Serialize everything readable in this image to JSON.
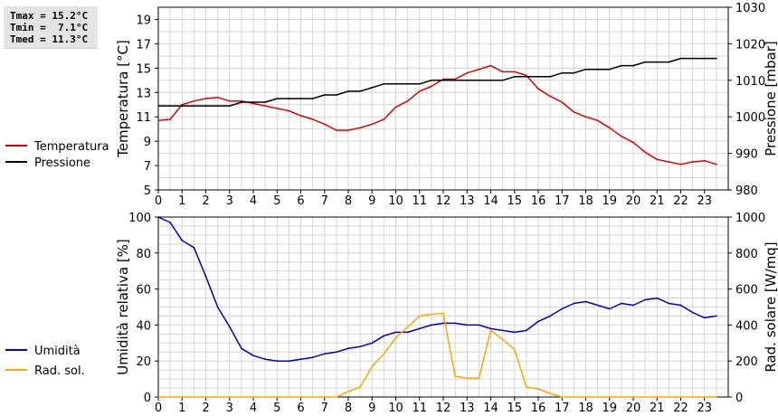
{
  "stats": {
    "tmax": "Tmax = 15.2°C",
    "tmin": "Tmin =  7.1°C",
    "tmed": "Tmed = 11.3°C"
  },
  "colors": {
    "temperature": "#e00000",
    "pressure": "#000000",
    "humidity": "#0000c8",
    "radiation": "#ffa500",
    "grid": "#d4d4d4"
  },
  "chart_data": [
    {
      "type": "line",
      "xlabel": "",
      "x_ticks": [
        "0",
        "1",
        "2",
        "3",
        "4",
        "5",
        "6",
        "7",
        "8",
        "9",
        "10",
        "11",
        "12",
        "13",
        "14",
        "15",
        "16",
        "17",
        "18",
        "19",
        "20",
        "21",
        "22",
        "23"
      ],
      "xlim": [
        0,
        24
      ],
      "grid": true,
      "legend_position": "left",
      "left_axis": {
        "label": "Temperatura [°C]",
        "ylim": [
          5,
          20
        ],
        "ticks": [
          "5",
          "7",
          "9",
          "11",
          "13",
          "15",
          "17",
          "19"
        ]
      },
      "right_axis": {
        "label": "Pressione [mbar]",
        "ylim": [
          980,
          1030
        ],
        "ticks": [
          "980",
          "990",
          "1000",
          "1010",
          "1020",
          "1030"
        ]
      },
      "series": [
        {
          "name": "Temperatura",
          "axis": "left",
          "x": [
            0,
            0.5,
            1,
            1.5,
            2,
            2.5,
            3,
            3.5,
            4,
            4.5,
            5,
            5.5,
            6,
            6.5,
            7,
            7.5,
            8,
            8.5,
            9,
            9.5,
            10,
            10.5,
            11,
            11.5,
            12,
            12.5,
            13,
            13.5,
            14,
            14.5,
            15,
            15.5,
            16,
            16.5,
            17,
            17.5,
            18,
            18.5,
            19,
            19.5,
            20,
            20.5,
            21,
            21.5,
            22,
            22.5,
            23,
            23.5
          ],
          "values": [
            10.7,
            10.8,
            12.0,
            12.3,
            12.5,
            12.6,
            12.3,
            12.3,
            12.1,
            11.9,
            11.7,
            11.5,
            11.1,
            10.8,
            10.4,
            9.9,
            9.9,
            10.1,
            10.4,
            10.8,
            11.8,
            12.3,
            13.1,
            13.5,
            14.1,
            14.1,
            14.6,
            14.9,
            15.2,
            14.7,
            14.7,
            14.4,
            13.3,
            12.7,
            12.2,
            11.4,
            11.0,
            10.7,
            10.1,
            9.4,
            8.9,
            8.1,
            7.5,
            7.3,
            7.1,
            7.3,
            7.4,
            7.1
          ]
        },
        {
          "name": "Pressione",
          "axis": "right",
          "x": [
            0,
            0.5,
            1,
            1.5,
            2,
            2.5,
            3,
            3.5,
            4,
            4.5,
            5,
            5.5,
            6,
            6.5,
            7,
            7.5,
            8,
            8.5,
            9,
            9.5,
            10,
            10.5,
            11,
            11.5,
            12,
            12.5,
            13,
            13.5,
            14,
            14.5,
            15,
            15.5,
            16,
            16.5,
            17,
            17.5,
            18,
            18.5,
            19,
            19.5,
            20,
            20.5,
            21,
            21.5,
            22,
            22.5,
            23,
            23.5
          ],
          "values": [
            1003,
            1003,
            1003,
            1003,
            1003,
            1003,
            1003,
            1004,
            1004,
            1004,
            1005,
            1005,
            1005,
            1005,
            1006,
            1006,
            1007,
            1007,
            1008,
            1009,
            1009,
            1009,
            1009,
            1010,
            1010,
            1010,
            1010,
            1010,
            1010,
            1010,
            1011,
            1011,
            1011,
            1011,
            1012,
            1012,
            1013,
            1013,
            1013,
            1014,
            1014,
            1015,
            1015,
            1015,
            1016,
            1016,
            1016,
            1016
          ]
        }
      ]
    },
    {
      "type": "line",
      "xlabel": "",
      "x_ticks": [
        "0",
        "1",
        "2",
        "3",
        "4",
        "5",
        "6",
        "7",
        "8",
        "9",
        "10",
        "11",
        "12",
        "13",
        "14",
        "15",
        "16",
        "17",
        "18",
        "19",
        "20",
        "21",
        "22",
        "23"
      ],
      "xlim": [
        0,
        24
      ],
      "grid": true,
      "legend_position": "left",
      "left_axis": {
        "label": "Umidità relativa [%]",
        "ylim": [
          0,
          100
        ],
        "ticks": [
          "0",
          "20",
          "40",
          "60",
          "80",
          "100"
        ]
      },
      "right_axis": {
        "label": "Rad. solare [W/mq]",
        "ylim": [
          0,
          1000
        ],
        "ticks": [
          "0",
          "200",
          "400",
          "600",
          "800",
          "1000"
        ]
      },
      "series": [
        {
          "name": "Umidità",
          "axis": "left",
          "x": [
            0,
            0.5,
            1,
            1.5,
            2,
            2.5,
            3,
            3.5,
            4,
            4.5,
            5,
            5.5,
            6,
            6.5,
            7,
            7.5,
            8,
            8.5,
            9,
            9.5,
            10,
            10.5,
            11,
            11.5,
            12,
            12.5,
            13,
            13.5,
            14,
            14.5,
            15,
            15.5,
            16,
            16.5,
            17,
            17.5,
            18,
            18.5,
            19,
            19.5,
            20,
            20.5,
            21,
            21.5,
            22,
            22.5,
            23,
            23.5
          ],
          "values": [
            100,
            97,
            87,
            83,
            67,
            50,
            39,
            27,
            23,
            21,
            20,
            20,
            21,
            22,
            24,
            25,
            27,
            28,
            30,
            34,
            36,
            36,
            38,
            40,
            41,
            41,
            40,
            40,
            38,
            37,
            36,
            37,
            42,
            45,
            49,
            52,
            53,
            51,
            49,
            52,
            51,
            54,
            55,
            52,
            51,
            47,
            44,
            45
          ]
        },
        {
          "name": "Rad. sol.",
          "axis": "right",
          "x": [
            0,
            1,
            2,
            3,
            4,
            5,
            6,
            7,
            7.5,
            8,
            8.5,
            9,
            9.5,
            10,
            10.5,
            11,
            11.5,
            12,
            12.5,
            13,
            13.5,
            14,
            14.5,
            15,
            15.5,
            16,
            16.5,
            17,
            18,
            19,
            20,
            21,
            22,
            23,
            23.5
          ],
          "values": [
            0,
            0,
            0,
            0,
            0,
            0,
            0,
            0,
            0,
            30,
            55,
            170,
            240,
            330,
            390,
            450,
            460,
            465,
            115,
            105,
            105,
            370,
            320,
            265,
            55,
            45,
            20,
            0,
            0,
            0,
            0,
            0,
            0,
            0,
            0
          ]
        }
      ]
    }
  ]
}
